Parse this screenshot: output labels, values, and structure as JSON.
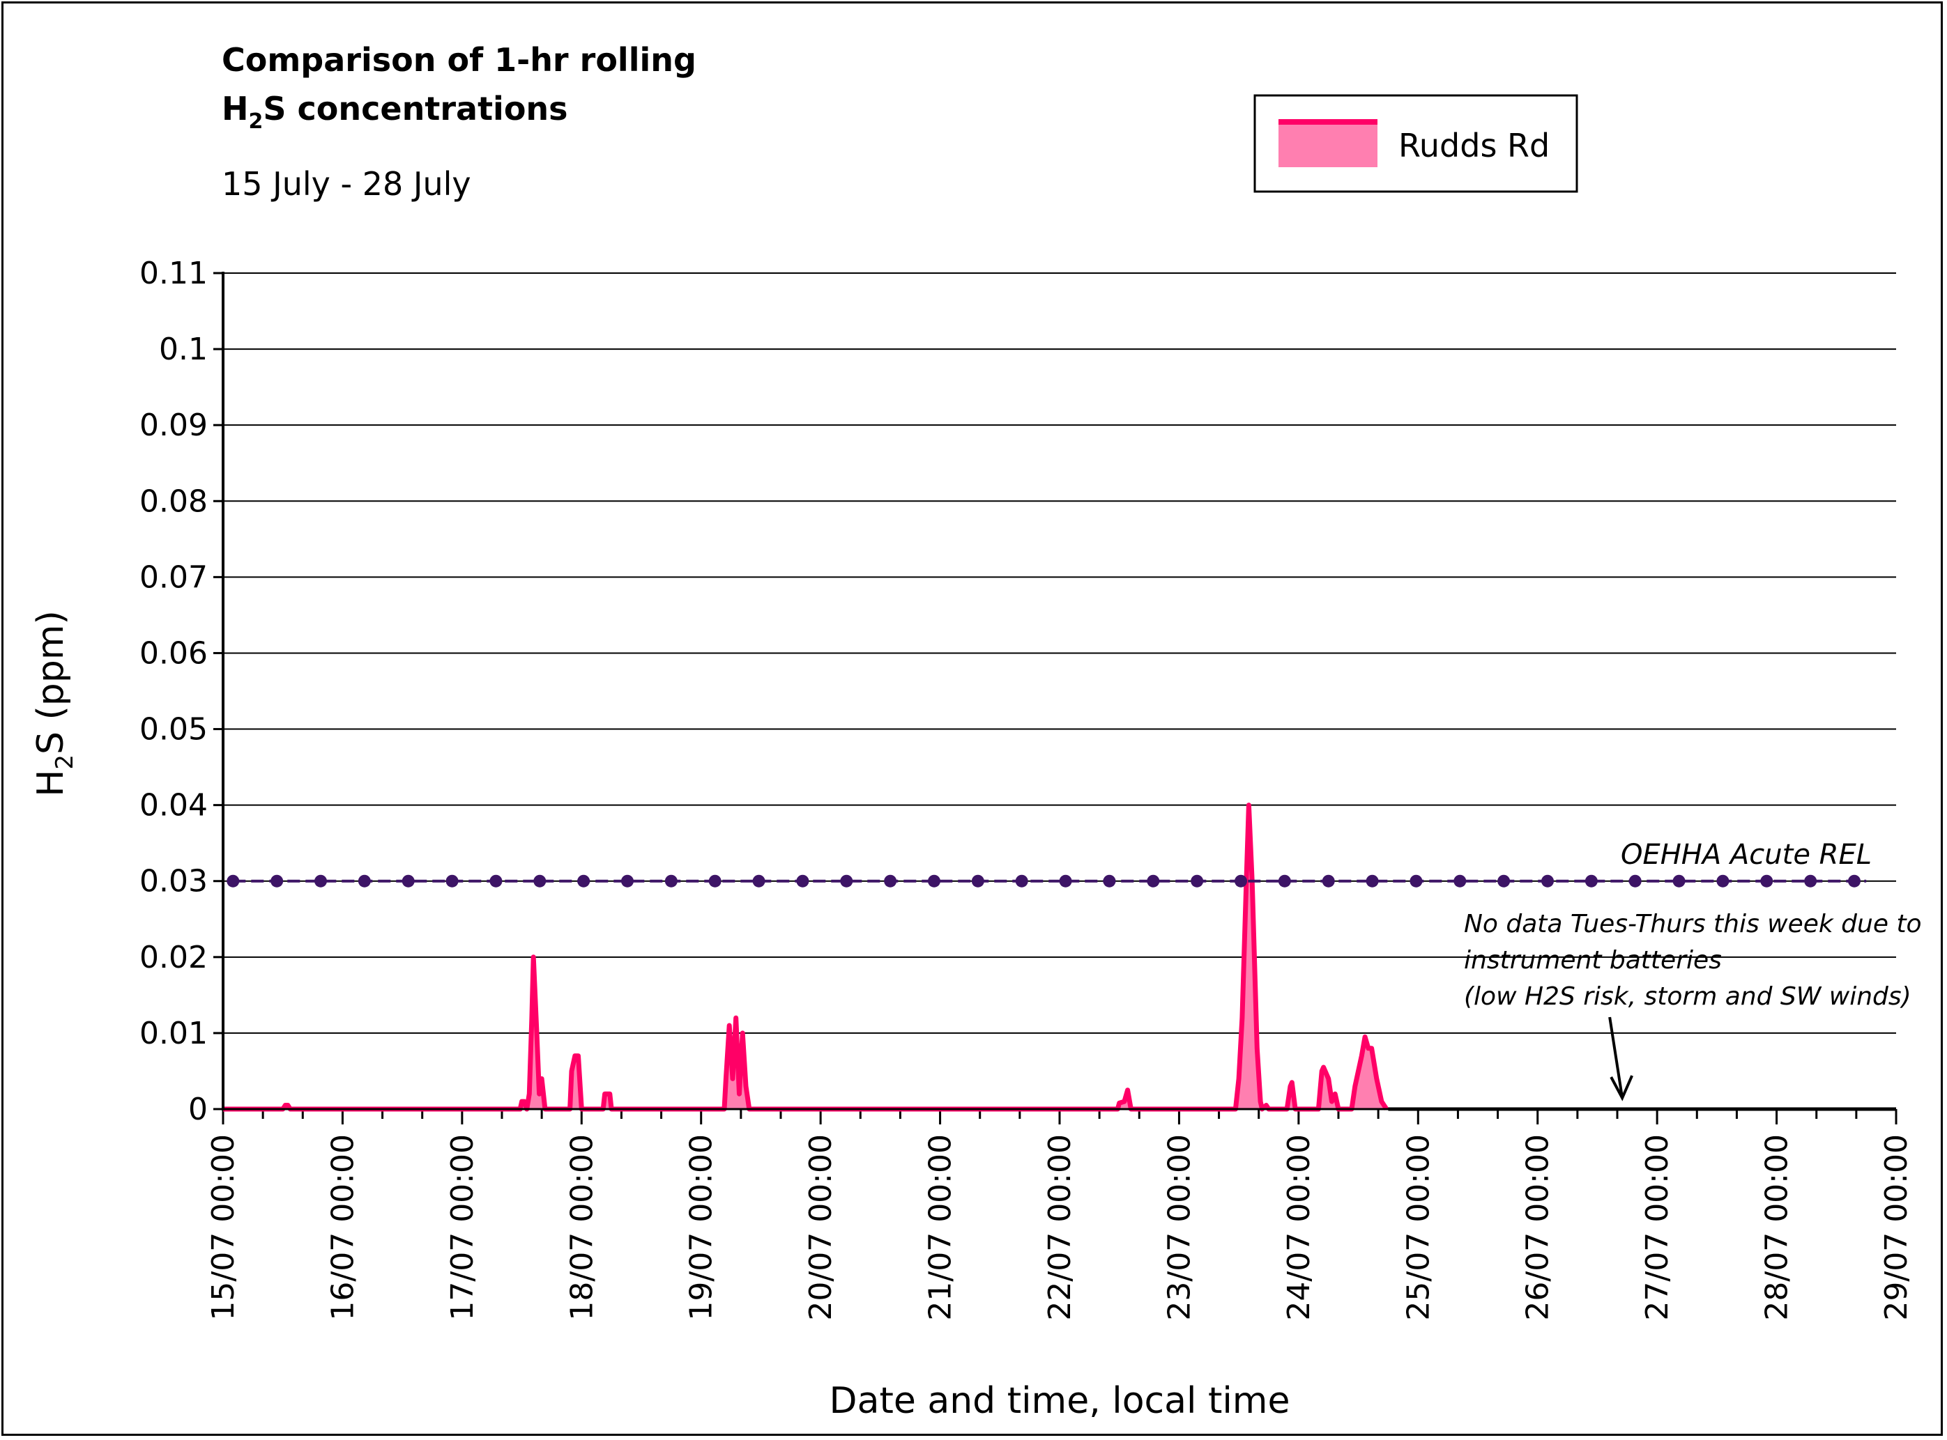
{
  "chart_data": {
    "type": "area",
    "title_line1": "Comparison of 1-hr rolling",
    "title_line2_prefix": "H",
    "title_line2_sub": "2",
    "title_line2_suffix": "S concentrations",
    "subtitle": "15 July - 28 July",
    "ylabel_prefix": "H",
    "ylabel_sub": "2",
    "ylabel_suffix": "S (ppm)",
    "xlabel": "Date and time, local time",
    "ylim": [
      0,
      0.11
    ],
    "yticks": [
      0,
      0.01,
      0.02,
      0.03,
      0.04,
      0.05,
      0.06,
      0.07,
      0.08,
      0.09,
      0.1,
      0.11
    ],
    "ytick_labels": [
      "0",
      "0.01",
      "0.02",
      "0.03",
      "0.04",
      "0.05",
      "0.06",
      "0.07",
      "0.08",
      "0.09",
      "0.1",
      "0.11"
    ],
    "xlim": [
      "15/07 00:00",
      "29/07 00:00"
    ],
    "xtick_labels": [
      "15/07 00:00",
      "16/07 00:00",
      "17/07 00:00",
      "18/07 00:00",
      "19/07 00:00",
      "20/07 00:00",
      "21/07 00:00",
      "22/07 00:00",
      "23/07 00:00",
      "24/07 00:00",
      "25/07 00:00",
      "26/07 00:00",
      "27/07 00:00",
      "28/07 00:00",
      "29/07 00:00"
    ],
    "grid": "horizontal",
    "legend": {
      "position": "top-right",
      "entries": [
        "Rudds Rd"
      ]
    },
    "series": [
      {
        "name": "Rudds Rd",
        "color": "#ff0066",
        "fill": "#ff7fb0",
        "style": "area-with-line",
        "points": [
          [
            "15/07 00:00",
            0
          ],
          [
            "15/07 12:00",
            0
          ],
          [
            "15/07 12:30",
            0.0005
          ],
          [
            "15/07 13:00",
            0.0005
          ],
          [
            "15/07 13:30",
            0
          ],
          [
            "17/07 11:40",
            0
          ],
          [
            "17/07 12:00",
            0.001
          ],
          [
            "17/07 12:30",
            0.001
          ],
          [
            "17/07 13:00",
            0
          ],
          [
            "17/07 13:30",
            0.002
          ],
          [
            "17/07 14:00",
            0.012
          ],
          [
            "17/07 14:20",
            0.02
          ],
          [
            "17/07 15:00",
            0.01
          ],
          [
            "17/07 15:30",
            0.002
          ],
          [
            "17/07 16:00",
            0.004
          ],
          [
            "17/07 16:40",
            0
          ],
          [
            "17/07 21:40",
            0
          ],
          [
            "17/07 22:00",
            0.005
          ],
          [
            "17/07 22:40",
            0.007
          ],
          [
            "17/07 23:20",
            0.007
          ],
          [
            "18/07 00:00",
            0
          ],
          [
            "18/07 04:20",
            0
          ],
          [
            "18/07 04:40",
            0.002
          ],
          [
            "18/07 05:40",
            0.002
          ],
          [
            "18/07 06:00",
            0
          ],
          [
            "19/07 04:40",
            0
          ],
          [
            "19/07 05:00",
            0.004
          ],
          [
            "19/07 05:40",
            0.011
          ],
          [
            "19/07 06:20",
            0.004
          ],
          [
            "19/07 07:00",
            0.012
          ],
          [
            "19/07 07:40",
            0.002
          ],
          [
            "19/07 08:20",
            0.01
          ],
          [
            "19/07 09:00",
            0.003
          ],
          [
            "19/07 09:40",
            0
          ],
          [
            "22/07 11:40",
            0
          ],
          [
            "22/07 12:00",
            0.0008
          ],
          [
            "22/07 13:00",
            0.001
          ],
          [
            "22/07 13:40",
            0.0025
          ],
          [
            "22/07 14:20",
            0
          ],
          [
            "23/07 11:20",
            0
          ],
          [
            "23/07 12:00",
            0.004
          ],
          [
            "23/07 12:40",
            0.012
          ],
          [
            "23/07 13:30",
            0.03
          ],
          [
            "23/07 14:00",
            0.04
          ],
          [
            "23/07 14:40",
            0.03
          ],
          [
            "23/07 15:40",
            0.008
          ],
          [
            "23/07 16:20",
            0.001
          ],
          [
            "23/07 16:40",
            0
          ],
          [
            "23/07 17:30",
            0.0005
          ],
          [
            "23/07 18:00",
            0
          ],
          [
            "23/07 21:40",
            0
          ],
          [
            "23/07 22:20",
            0.003
          ],
          [
            "23/07 22:40",
            0.0035
          ],
          [
            "23/07 23:20",
            0
          ],
          [
            "24/07 04:00",
            0
          ],
          [
            "24/07 04:40",
            0.005
          ],
          [
            "24/07 05:00",
            0.0055
          ],
          [
            "24/07 06:00",
            0.004
          ],
          [
            "24/07 06:40",
            0.001
          ],
          [
            "24/07 07:20",
            0.002
          ],
          [
            "24/07 08:00",
            0
          ],
          [
            "24/07 10:40",
            0
          ],
          [
            "24/07 11:20",
            0.003
          ],
          [
            "24/07 12:40",
            0.007
          ],
          [
            "24/07 13:20",
            0.0095
          ],
          [
            "24/07 14:00",
            0.008
          ],
          [
            "24/07 14:40",
            0.008
          ],
          [
            "24/07 15:40",
            0.004
          ],
          [
            "24/07 16:40",
            0.001
          ],
          [
            "24/07 17:40",
            0
          ]
        ]
      },
      {
        "name": "OEHHA Acute REL",
        "color": "#3d1466",
        "style": "line-with-markers",
        "value": 0.03,
        "x_start": "15/07 02:00",
        "x_end": "28/07 18:00",
        "marker_interval_hours": 8.8
      }
    ],
    "baseline_black_from": "24/07 18:00",
    "annotations": {
      "rel_label": "OEHHA Acute REL",
      "note_line1": "No data Tues-Thurs this week due to",
      "note_line2": "instrument batteries",
      "note_line3": "(low H2S risk, storm and SW winds)",
      "arrow_target": [
        "26/07 17:00",
        0
      ]
    }
  }
}
